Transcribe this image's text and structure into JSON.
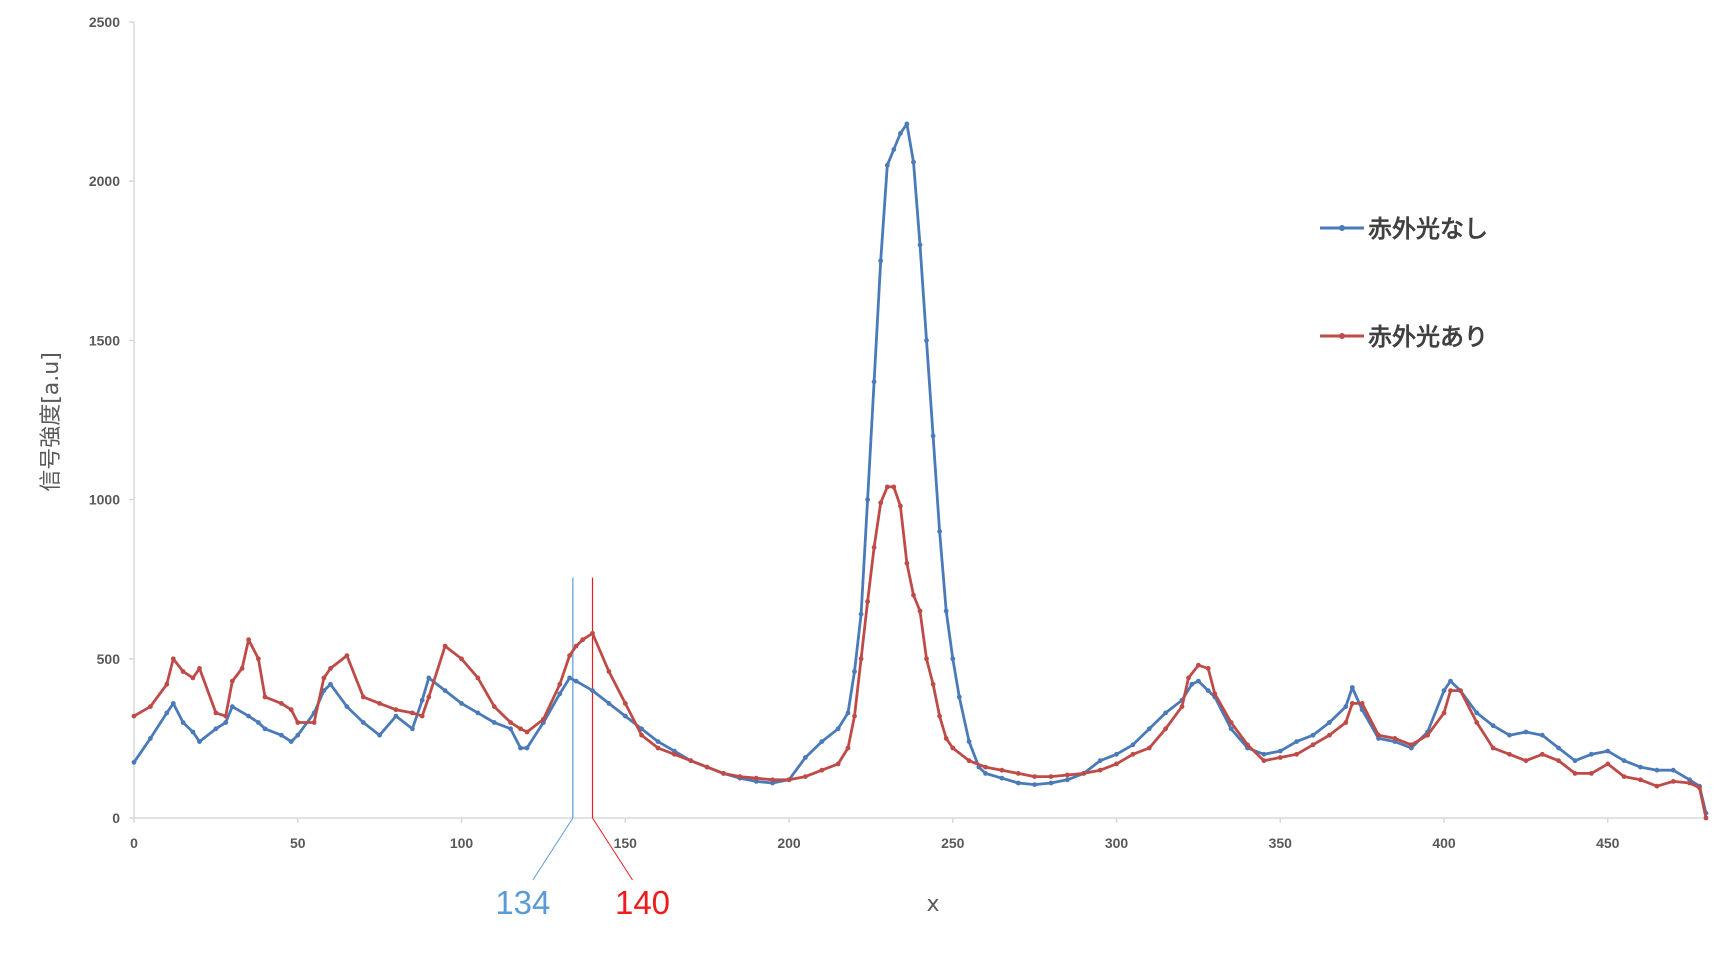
{
  "chart_data": {
    "type": "line",
    "xlabel": "x",
    "ylabel": "信号強度[a.u]",
    "xlim": [
      0,
      480
    ],
    "ylim": [
      0,
      2500
    ],
    "x_ticks": [
      "0",
      "50",
      "100",
      "150",
      "200",
      "250",
      "300",
      "350",
      "400",
      "450"
    ],
    "y_ticks": [
      "0",
      "500",
      "1000",
      "1500",
      "2000",
      "2500"
    ],
    "legend_position": "right",
    "grid": false,
    "series": [
      {
        "name": "赤外光なし",
        "color": "#4a7ab8",
        "x": [
          0,
          5,
          10,
          12,
          15,
          18,
          20,
          25,
          28,
          30,
          35,
          38,
          40,
          45,
          48,
          50,
          55,
          58,
          60,
          65,
          70,
          75,
          80,
          85,
          88,
          90,
          95,
          100,
          105,
          110,
          115,
          118,
          120,
          125,
          130,
          133,
          135,
          140,
          145,
          150,
          155,
          160,
          165,
          170,
          175,
          180,
          185,
          190,
          195,
          200,
          205,
          210,
          215,
          218,
          220,
          222,
          224,
          226,
          228,
          230,
          232,
          234,
          236,
          238,
          240,
          242,
          244,
          246,
          248,
          250,
          252,
          255,
          258,
          260,
          265,
          270,
          275,
          280,
          285,
          290,
          295,
          300,
          305,
          310,
          315,
          320,
          323,
          325,
          328,
          330,
          335,
          340,
          345,
          350,
          355,
          360,
          365,
          370,
          372,
          375,
          380,
          385,
          390,
          395,
          400,
          402,
          405,
          410,
          415,
          420,
          425,
          430,
          435,
          440,
          445,
          450,
          455,
          460,
          465,
          470,
          475,
          478,
          480
        ],
        "y": [
          175,
          250,
          330,
          360,
          300,
          270,
          240,
          280,
          300,
          350,
          320,
          300,
          280,
          260,
          240,
          260,
          330,
          400,
          420,
          350,
          300,
          260,
          320,
          280,
          370,
          440,
          400,
          360,
          330,
          300,
          280,
          220,
          220,
          300,
          390,
          440,
          430,
          400,
          360,
          320,
          280,
          240,
          210,
          180,
          160,
          140,
          125,
          115,
          110,
          120,
          190,
          240,
          280,
          330,
          460,
          640,
          1000,
          1370,
          1750,
          2050,
          2100,
          2150,
          2180,
          2060,
          1800,
          1500,
          1200,
          900,
          650,
          500,
          380,
          240,
          160,
          140,
          125,
          110,
          105,
          110,
          120,
          140,
          180,
          200,
          230,
          280,
          330,
          370,
          420,
          430,
          400,
          380,
          280,
          220,
          200,
          210,
          240,
          260,
          300,
          350,
          410,
          340,
          250,
          240,
          220,
          270,
          400,
          430,
          400,
          330,
          290,
          260,
          270,
          260,
          220,
          180,
          200,
          210,
          180,
          160,
          150,
          150,
          120,
          100,
          15
        ]
      },
      {
        "name": "赤外光あり",
        "color": "#bf4b48",
        "x": [
          0,
          5,
          10,
          12,
          15,
          18,
          20,
          25,
          28,
          30,
          33,
          35,
          38,
          40,
          45,
          48,
          50,
          55,
          58,
          60,
          65,
          70,
          75,
          80,
          85,
          88,
          90,
          95,
          100,
          105,
          110,
          115,
          118,
          120,
          125,
          130,
          133,
          135,
          137,
          140,
          145,
          150,
          155,
          160,
          165,
          170,
          175,
          180,
          185,
          190,
          195,
          200,
          205,
          210,
          215,
          218,
          220,
          222,
          224,
          226,
          228,
          230,
          232,
          234,
          236,
          238,
          240,
          242,
          244,
          246,
          248,
          250,
          255,
          260,
          265,
          270,
          275,
          280,
          285,
          290,
          295,
          300,
          305,
          310,
          315,
          320,
          322,
          325,
          328,
          330,
          335,
          340,
          345,
          350,
          355,
          360,
          365,
          370,
          372,
          375,
          380,
          385,
          390,
          395,
          400,
          402,
          405,
          410,
          415,
          420,
          425,
          430,
          435,
          440,
          445,
          450,
          455,
          460,
          465,
          470,
          475,
          478,
          480
        ],
        "y": [
          320,
          350,
          420,
          500,
          460,
          440,
          470,
          330,
          320,
          430,
          470,
          560,
          500,
          380,
          360,
          340,
          300,
          300,
          440,
          470,
          510,
          380,
          360,
          340,
          330,
          320,
          380,
          540,
          500,
          440,
          350,
          300,
          280,
          270,
          310,
          420,
          510,
          540,
          560,
          580,
          460,
          360,
          260,
          220,
          200,
          180,
          160,
          140,
          130,
          125,
          120,
          120,
          130,
          150,
          170,
          220,
          320,
          500,
          680,
          850,
          990,
          1040,
          1040,
          980,
          800,
          700,
          650,
          500,
          420,
          320,
          250,
          220,
          180,
          160,
          150,
          140,
          130,
          130,
          135,
          140,
          150,
          170,
          200,
          220,
          280,
          350,
          440,
          480,
          470,
          390,
          300,
          230,
          180,
          190,
          200,
          230,
          260,
          300,
          360,
          360,
          260,
          250,
          230,
          260,
          330,
          400,
          400,
          300,
          220,
          200,
          180,
          200,
          180,
          140,
          140,
          170,
          130,
          120,
          100,
          115,
          110,
          95,
          0
        ]
      }
    ],
    "markers": [
      {
        "x": 134,
        "label": "134",
        "color": "#5b9bd5"
      },
      {
        "x": 140,
        "label": "140",
        "color": "#ee1c1c"
      }
    ]
  }
}
